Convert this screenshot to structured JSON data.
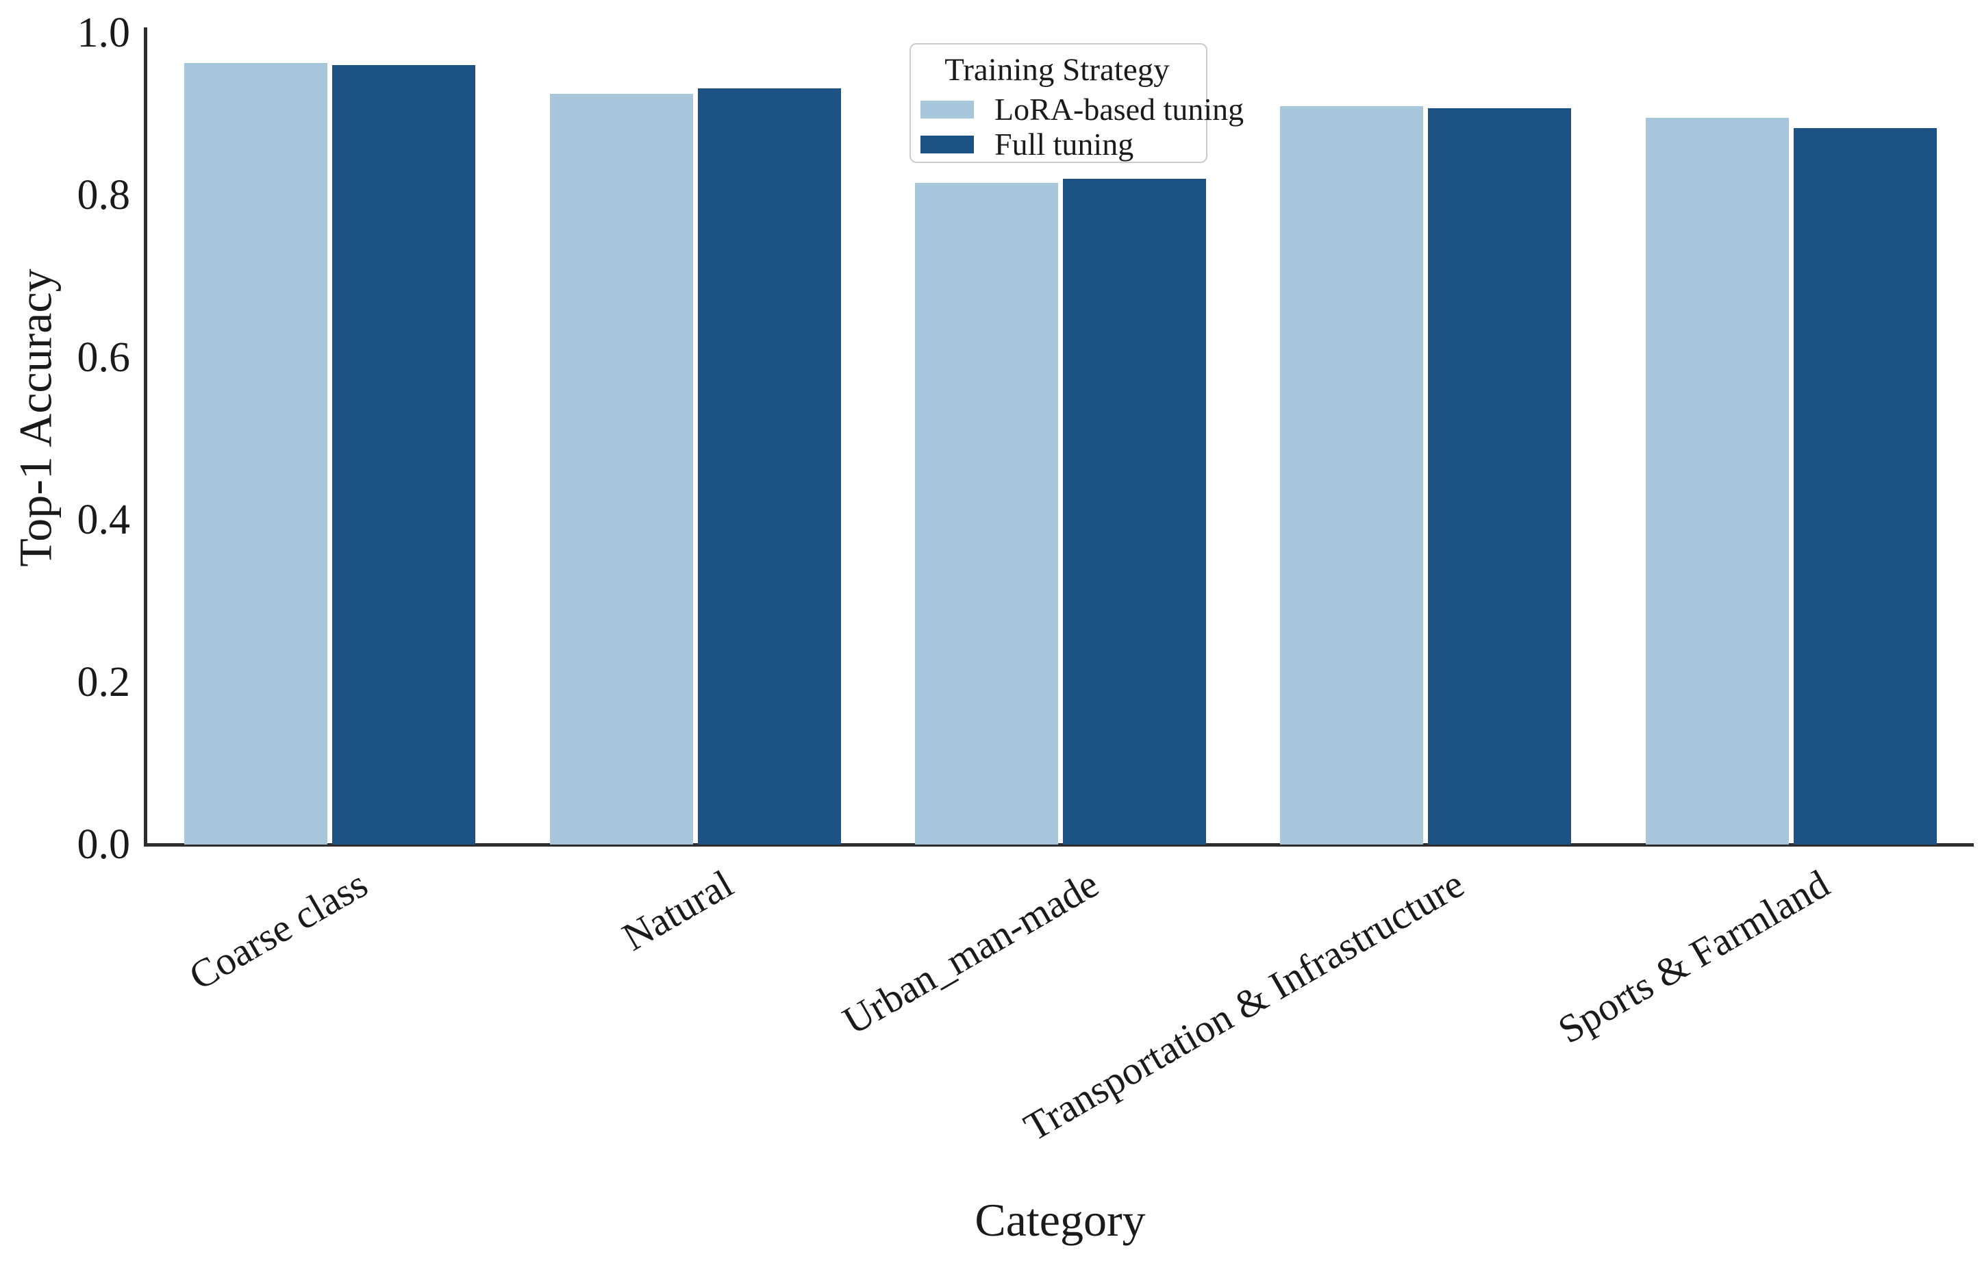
{
  "chart_data": {
    "type": "bar",
    "title": "",
    "categories": [
      "Coarse class",
      "Natural",
      "Urban_man-made",
      "Transportation & Infrastructure",
      "Sports & Farmland"
    ],
    "series": [
      {
        "name": "LoRA-based tuning",
        "color": "#a7c6db",
        "values": [
          0.963,
          0.925,
          0.815,
          0.91,
          0.895
        ]
      },
      {
        "name": "Full tuning",
        "color": "#1d5284",
        "values": [
          0.96,
          0.932,
          0.82,
          0.907,
          0.883
        ]
      }
    ],
    "xlabel": "Category",
    "ylabel": "Top-1 Accuracy",
    "ylim": [
      0.0,
      1.0
    ],
    "yticks": [
      "0.0",
      "0.2",
      "0.4",
      "0.6",
      "0.8",
      "1.0"
    ],
    "ytick_values": [
      0.0,
      0.2,
      0.4,
      0.6,
      0.8,
      1.0
    ],
    "legend": {
      "title": "Training Strategy",
      "position": "upper center"
    },
    "grid": false,
    "bar_width": 0.8
  },
  "colors": {
    "axis": "#2d2d2d",
    "text": "#1a1a1a",
    "legend_border": "#cccccc",
    "background": "#ffffff"
  }
}
